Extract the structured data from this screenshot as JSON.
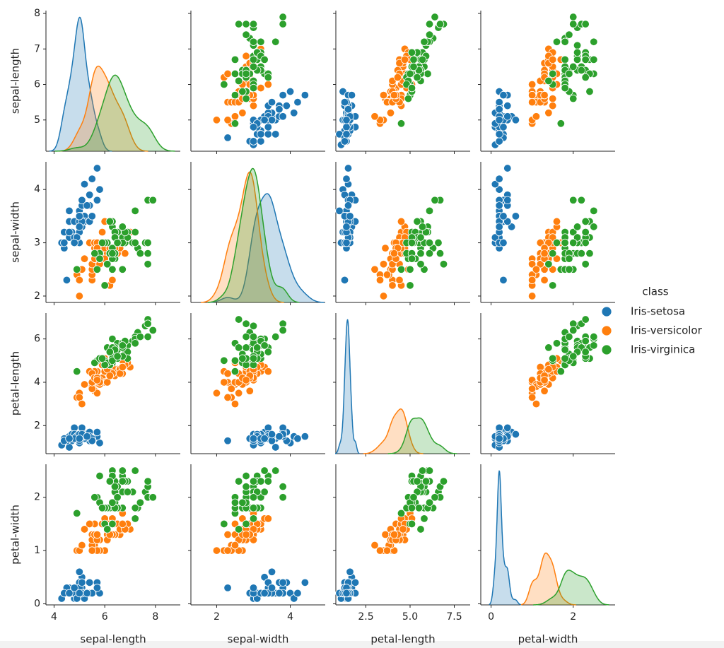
{
  "chart_data": {
    "type": "pairplot",
    "legend_title": "class",
    "legend_position": "right",
    "axes": [
      {
        "label": "sepal-length",
        "xlim": [
          3.68,
          8.98
        ],
        "xticks": [
          4,
          6,
          8
        ],
        "ylim": [
          4.12,
          8.08
        ],
        "yticks": [
          5,
          6,
          7,
          8
        ]
      },
      {
        "label": "sepal-width",
        "xlim": [
          1.3,
          4.95
        ],
        "xticks": [
          2,
          4
        ],
        "ylim": [
          1.88,
          4.52
        ],
        "yticks": [
          2,
          3,
          4
        ]
      },
      {
        "label": "petal-length",
        "xlim": [
          0.8,
          8.4
        ],
        "xticks": [
          2.5,
          {
            "value": 5,
            "label": "5.0"
          },
          7.5
        ],
        "ylim": [
          0.705,
          7.195
        ],
        "yticks": [
          2,
          4,
          6
        ]
      },
      {
        "label": "petal-width",
        "xlim": [
          -0.25,
          3.02
        ],
        "xticks": [
          0,
          2
        ],
        "ylim": [
          -0.02,
          2.62
        ],
        "yticks": [
          0,
          1,
          2
        ]
      }
    ],
    "series": [
      {
        "name": "Iris-setosa",
        "color": "#1f77b4",
        "values": [
          [
            5.1,
            3.5,
            1.4,
            0.2
          ],
          [
            4.9,
            3.0,
            1.4,
            0.2
          ],
          [
            4.7,
            3.2,
            1.3,
            0.2
          ],
          [
            4.6,
            3.1,
            1.5,
            0.2
          ],
          [
            5.0,
            3.6,
            1.4,
            0.2
          ],
          [
            5.4,
            3.9,
            1.7,
            0.4
          ],
          [
            4.6,
            3.4,
            1.4,
            0.3
          ],
          [
            5.0,
            3.4,
            1.5,
            0.2
          ],
          [
            4.4,
            2.9,
            1.4,
            0.2
          ],
          [
            4.9,
            3.1,
            1.5,
            0.1
          ],
          [
            5.4,
            3.7,
            1.5,
            0.2
          ],
          [
            4.8,
            3.4,
            1.6,
            0.2
          ],
          [
            4.8,
            3.0,
            1.4,
            0.1
          ],
          [
            4.3,
            3.0,
            1.1,
            0.1
          ],
          [
            5.8,
            4.0,
            1.2,
            0.2
          ],
          [
            5.7,
            4.4,
            1.5,
            0.4
          ],
          [
            5.4,
            3.9,
            1.3,
            0.4
          ],
          [
            5.1,
            3.5,
            1.4,
            0.3
          ],
          [
            5.7,
            3.8,
            1.7,
            0.3
          ],
          [
            5.1,
            3.8,
            1.5,
            0.3
          ],
          [
            5.4,
            3.4,
            1.7,
            0.2
          ],
          [
            5.1,
            3.7,
            1.5,
            0.4
          ],
          [
            4.6,
            3.6,
            1.0,
            0.2
          ],
          [
            5.1,
            3.3,
            1.7,
            0.5
          ],
          [
            4.8,
            3.4,
            1.9,
            0.2
          ],
          [
            5.0,
            3.0,
            1.6,
            0.2
          ],
          [
            5.0,
            3.4,
            1.6,
            0.4
          ],
          [
            5.2,
            3.5,
            1.5,
            0.2
          ],
          [
            5.2,
            3.4,
            1.4,
            0.2
          ],
          [
            4.7,
            3.2,
            1.6,
            0.2
          ],
          [
            4.8,
            3.1,
            1.6,
            0.2
          ],
          [
            5.4,
            3.4,
            1.5,
            0.4
          ],
          [
            5.2,
            4.1,
            1.5,
            0.1
          ],
          [
            5.5,
            4.2,
            1.4,
            0.2
          ],
          [
            4.9,
            3.1,
            1.5,
            0.1
          ],
          [
            5.0,
            3.2,
            1.2,
            0.2
          ],
          [
            5.5,
            3.5,
            1.3,
            0.2
          ],
          [
            4.9,
            3.1,
            1.5,
            0.1
          ],
          [
            4.4,
            3.0,
            1.3,
            0.2
          ],
          [
            5.1,
            3.4,
            1.5,
            0.2
          ],
          [
            5.0,
            3.5,
            1.3,
            0.3
          ],
          [
            4.5,
            2.3,
            1.3,
            0.3
          ],
          [
            4.4,
            3.2,
            1.3,
            0.2
          ],
          [
            5.0,
            3.5,
            1.6,
            0.6
          ],
          [
            5.1,
            3.8,
            1.9,
            0.4
          ],
          [
            4.8,
            3.0,
            1.4,
            0.3
          ],
          [
            5.1,
            3.8,
            1.6,
            0.2
          ],
          [
            4.6,
            3.2,
            1.4,
            0.2
          ],
          [
            5.3,
            3.7,
            1.5,
            0.2
          ],
          [
            5.0,
            3.3,
            1.4,
            0.2
          ]
        ]
      },
      {
        "name": "Iris-versicolor",
        "color": "#ff7f0e",
        "values": [
          [
            7.0,
            3.2,
            4.7,
            1.4
          ],
          [
            6.4,
            3.2,
            4.5,
            1.5
          ],
          [
            6.9,
            3.1,
            4.9,
            1.5
          ],
          [
            5.5,
            2.3,
            4.0,
            1.3
          ],
          [
            6.5,
            2.8,
            4.6,
            1.5
          ],
          [
            5.7,
            2.8,
            4.5,
            1.3
          ],
          [
            6.3,
            3.3,
            4.7,
            1.6
          ],
          [
            4.9,
            2.4,
            3.3,
            1.0
          ],
          [
            6.6,
            2.9,
            4.6,
            1.3
          ],
          [
            5.2,
            2.7,
            3.9,
            1.4
          ],
          [
            5.0,
            2.0,
            3.5,
            1.0
          ],
          [
            5.9,
            3.0,
            4.2,
            1.5
          ],
          [
            6.0,
            2.2,
            4.0,
            1.0
          ],
          [
            6.1,
            2.9,
            4.7,
            1.4
          ],
          [
            5.6,
            2.9,
            3.6,
            1.3
          ],
          [
            6.7,
            3.1,
            4.4,
            1.4
          ],
          [
            5.6,
            3.0,
            4.5,
            1.5
          ],
          [
            5.8,
            2.7,
            4.1,
            1.0
          ],
          [
            6.2,
            2.2,
            4.5,
            1.5
          ],
          [
            5.6,
            2.5,
            3.9,
            1.1
          ],
          [
            5.9,
            3.2,
            4.8,
            1.8
          ],
          [
            6.1,
            2.8,
            4.0,
            1.3
          ],
          [
            6.3,
            2.5,
            4.9,
            1.5
          ],
          [
            6.1,
            2.8,
            4.7,
            1.2
          ],
          [
            6.4,
            2.9,
            4.3,
            1.3
          ],
          [
            6.6,
            3.0,
            4.4,
            1.4
          ],
          [
            6.8,
            2.8,
            4.8,
            1.4
          ],
          [
            6.7,
            3.0,
            5.0,
            1.7
          ],
          [
            6.0,
            2.9,
            4.5,
            1.5
          ],
          [
            5.7,
            2.6,
            3.5,
            1.0
          ],
          [
            5.5,
            2.4,
            3.8,
            1.1
          ],
          [
            5.5,
            2.4,
            3.7,
            1.0
          ],
          [
            5.8,
            2.7,
            3.9,
            1.2
          ],
          [
            6.0,
            2.7,
            5.1,
            1.6
          ],
          [
            5.4,
            3.0,
            4.5,
            1.5
          ],
          [
            6.0,
            3.4,
            4.5,
            1.6
          ],
          [
            6.7,
            3.1,
            4.7,
            1.5
          ],
          [
            6.3,
            2.3,
            4.4,
            1.3
          ],
          [
            5.6,
            3.0,
            4.1,
            1.3
          ],
          [
            5.5,
            2.5,
            4.0,
            1.3
          ],
          [
            5.5,
            2.6,
            4.4,
            1.2
          ],
          [
            6.1,
            3.0,
            4.6,
            1.4
          ],
          [
            5.8,
            2.6,
            4.0,
            1.2
          ],
          [
            5.0,
            2.3,
            3.3,
            1.0
          ],
          [
            5.6,
            2.7,
            4.2,
            1.3
          ],
          [
            5.7,
            3.0,
            4.2,
            1.2
          ],
          [
            5.7,
            2.9,
            4.2,
            1.3
          ],
          [
            6.2,
            2.9,
            4.3,
            1.3
          ],
          [
            5.1,
            2.5,
            3.0,
            1.1
          ],
          [
            5.7,
            2.8,
            4.1,
            1.3
          ]
        ]
      },
      {
        "name": "Iris-virginica",
        "color": "#2ca02c",
        "values": [
          [
            6.3,
            3.3,
            6.0,
            2.5
          ],
          [
            5.8,
            2.7,
            5.1,
            1.9
          ],
          [
            7.1,
            3.0,
            5.9,
            2.1
          ],
          [
            6.3,
            2.9,
            5.6,
            1.8
          ],
          [
            6.5,
            3.0,
            5.8,
            2.2
          ],
          [
            7.6,
            3.0,
            6.6,
            2.1
          ],
          [
            4.9,
            2.5,
            4.5,
            1.7
          ],
          [
            7.3,
            2.9,
            6.3,
            1.8
          ],
          [
            6.7,
            2.5,
            5.8,
            1.8
          ],
          [
            7.2,
            3.6,
            6.1,
            2.5
          ],
          [
            6.5,
            3.2,
            5.1,
            2.0
          ],
          [
            6.4,
            2.7,
            5.3,
            1.9
          ],
          [
            6.8,
            3.0,
            5.5,
            2.1
          ],
          [
            5.7,
            2.5,
            5.0,
            2.0
          ],
          [
            5.8,
            2.8,
            5.1,
            2.4
          ],
          [
            6.4,
            3.2,
            5.3,
            2.3
          ],
          [
            6.5,
            3.0,
            5.5,
            1.8
          ],
          [
            7.7,
            3.8,
            6.7,
            2.2
          ],
          [
            7.7,
            2.6,
            6.9,
            2.3
          ],
          [
            6.0,
            2.2,
            5.0,
            1.5
          ],
          [
            6.9,
            3.2,
            5.7,
            2.3
          ],
          [
            5.6,
            2.8,
            4.9,
            2.0
          ],
          [
            7.7,
            2.8,
            6.7,
            2.0
          ],
          [
            6.3,
            2.7,
            4.9,
            1.8
          ],
          [
            6.7,
            3.3,
            5.7,
            2.1
          ],
          [
            7.2,
            3.2,
            6.0,
            1.8
          ],
          [
            6.2,
            2.8,
            4.8,
            1.8
          ],
          [
            6.1,
            3.0,
            4.9,
            1.8
          ],
          [
            6.4,
            2.8,
            5.6,
            2.1
          ],
          [
            7.2,
            3.0,
            5.8,
            1.6
          ],
          [
            7.4,
            2.8,
            6.1,
            1.9
          ],
          [
            7.9,
            3.8,
            6.4,
            2.0
          ],
          [
            6.4,
            2.8,
            5.6,
            2.2
          ],
          [
            6.3,
            2.8,
            5.1,
            1.5
          ],
          [
            6.1,
            2.6,
            5.6,
            1.4
          ],
          [
            7.7,
            3.0,
            6.1,
            2.3
          ],
          [
            6.3,
            3.4,
            5.6,
            2.4
          ],
          [
            6.4,
            3.1,
            5.5,
            1.8
          ],
          [
            6.0,
            3.0,
            4.8,
            1.8
          ],
          [
            6.9,
            3.1,
            5.4,
            2.1
          ],
          [
            6.7,
            3.1,
            5.6,
            2.4
          ],
          [
            6.9,
            3.1,
            5.1,
            2.3
          ],
          [
            5.8,
            2.7,
            5.1,
            1.9
          ],
          [
            6.8,
            3.2,
            5.9,
            2.3
          ],
          [
            6.7,
            3.3,
            5.7,
            2.5
          ],
          [
            6.7,
            3.0,
            5.2,
            2.3
          ],
          [
            6.3,
            2.5,
            5.0,
            1.9
          ],
          [
            6.5,
            3.0,
            5.2,
            2.0
          ],
          [
            6.2,
            3.4,
            5.4,
            2.3
          ],
          [
            5.9,
            3.0,
            5.1,
            1.8
          ]
        ]
      }
    ]
  }
}
